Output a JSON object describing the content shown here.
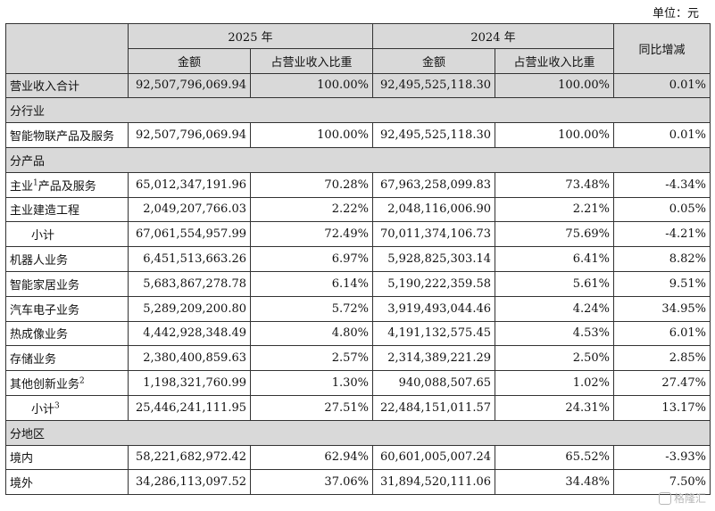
{
  "unit_label": "单位：元",
  "header": {
    "year_2025": "2025 年",
    "year_2024": "2024 年",
    "yoy": "同比增减",
    "amount": "金额",
    "ratio": "占营业收入比重"
  },
  "rows": [
    {
      "type": "total",
      "label": "营业收入合计",
      "sup": "",
      "a2025": "92,507,796,069.94",
      "r2025": "100.00%",
      "a2024": "92,495,525,118.30",
      "r2024": "100.00%",
      "yoy": "0.01%"
    },
    {
      "type": "section",
      "label": "分行业"
    },
    {
      "type": "data",
      "label": "智能物联产品及服务",
      "sup": "",
      "a2025": "92,507,796,069.94",
      "r2025": "100.00%",
      "a2024": "92,495,525,118.30",
      "r2024": "100.00%",
      "yoy": "0.01%"
    },
    {
      "type": "section",
      "label": "分产品"
    },
    {
      "type": "data",
      "label": "主业",
      "sup": "1",
      "label_suffix": "产品及服务",
      "a2025": "65,012,347,191.96",
      "r2025": "70.28%",
      "a2024": "67,963,258,099.83",
      "r2024": "73.48%",
      "yoy": "-4.34%"
    },
    {
      "type": "data",
      "label": "主业建造工程",
      "sup": "",
      "a2025": "2,049,207,766.03",
      "r2025": "2.22%",
      "a2024": "2,048,116,006.90",
      "r2024": "2.21%",
      "yoy": "0.05%"
    },
    {
      "type": "subtotal",
      "label": "小计",
      "sup": "",
      "a2025": "67,061,554,957.99",
      "r2025": "72.49%",
      "a2024": "70,011,374,106.73",
      "r2024": "75.69%",
      "yoy": "-4.21%"
    },
    {
      "type": "data",
      "label": "机器人业务",
      "sup": "",
      "a2025": "6,451,513,663.26",
      "r2025": "6.97%",
      "a2024": "5,928,825,303.14",
      "r2024": "6.41%",
      "yoy": "8.82%"
    },
    {
      "type": "data",
      "label": "智能家居业务",
      "sup": "",
      "a2025": "5,683,867,278.78",
      "r2025": "6.14%",
      "a2024": "5,190,222,359.58",
      "r2024": "5.61%",
      "yoy": "9.51%"
    },
    {
      "type": "data",
      "label": "汽车电子业务",
      "sup": "",
      "a2025": "5,289,209,200.80",
      "r2025": "5.72%",
      "a2024": "3,919,493,044.46",
      "r2024": "4.24%",
      "yoy": "34.95%"
    },
    {
      "type": "data",
      "label": "热成像业务",
      "sup": "",
      "a2025": "4,442,928,348.49",
      "r2025": "4.80%",
      "a2024": "4,191,132,575.45",
      "r2024": "4.53%",
      "yoy": "6.01%"
    },
    {
      "type": "data",
      "label": "存储业务",
      "sup": "",
      "a2025": "2,380,400,859.63",
      "r2025": "2.57%",
      "a2024": "2,314,389,221.29",
      "r2024": "2.50%",
      "yoy": "2.85%"
    },
    {
      "type": "data",
      "label": "其他创新业务",
      "sup": "2",
      "label_suffix": "",
      "a2025": "1,198,321,760.99",
      "r2025": "1.30%",
      "a2024": "940,088,507.65",
      "r2024": "1.02%",
      "yoy": "27.47%"
    },
    {
      "type": "subtotal",
      "label": "小计",
      "sup": "3",
      "label_suffix": "",
      "a2025": "25,446,241,111.95",
      "r2025": "27.51%",
      "a2024": "22,484,151,011.57",
      "r2024": "24.31%",
      "yoy": "13.17%"
    },
    {
      "type": "section",
      "label": "分地区"
    },
    {
      "type": "data",
      "label": "境内",
      "sup": "",
      "a2025": "58,221,682,972.42",
      "r2025": "62.94%",
      "a2024": "60,601,005,007.24",
      "r2024": "65.52%",
      "yoy": "-3.93%"
    },
    {
      "type": "data",
      "label": "境外",
      "sup": "",
      "a2025": "34,286,113,097.52",
      "r2025": "37.06%",
      "a2024": "31,894,520,111.06",
      "r2024": "34.48%",
      "yoy": "7.50%"
    }
  ],
  "watermark": {
    "text": "格隆汇",
    "icon": "gelonghui-logo-icon"
  }
}
